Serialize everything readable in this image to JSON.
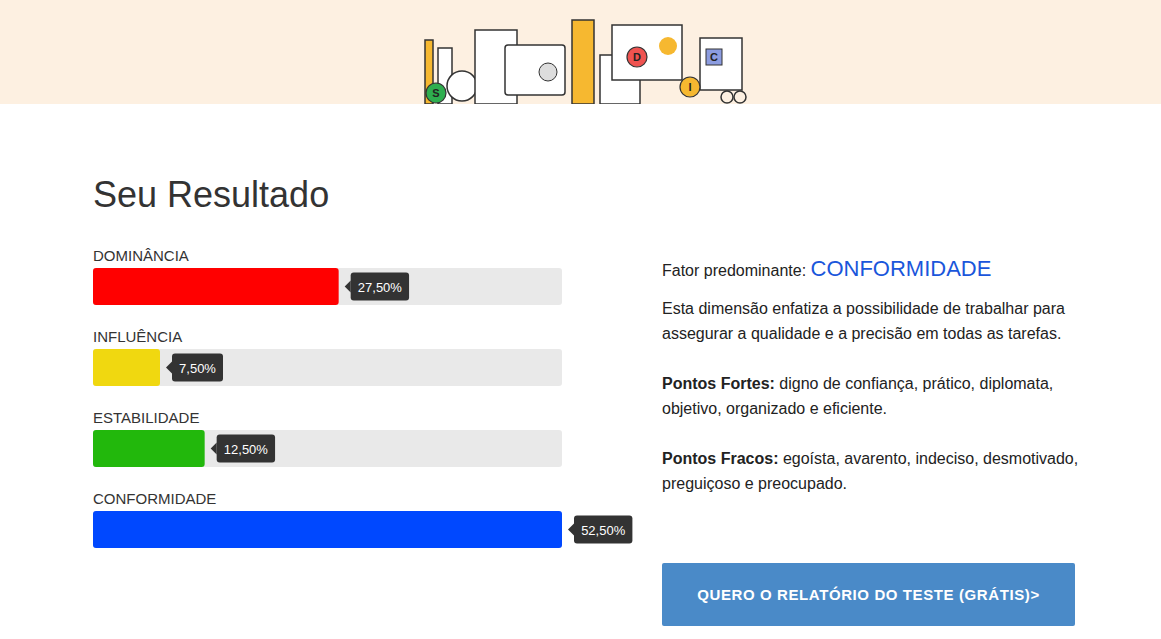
{
  "header": {
    "icon_letters": [
      "S",
      "D",
      "I",
      "C"
    ]
  },
  "title": "Seu Resultado",
  "chart_data": {
    "type": "bar",
    "orientation": "horizontal",
    "categories": [
      "DOMINÂNCIA",
      "INFLUÊNCIA",
      "ESTABILIDADE",
      "CONFORMIDADE"
    ],
    "values": [
      27.5,
      7.5,
      12.5,
      52.5
    ],
    "value_labels": [
      "27,50%",
      "7,50%",
      "12,50%",
      "52,50%"
    ],
    "colors": [
      "#ff0000",
      "#f0d810",
      "#22b80c",
      "#0048ff"
    ],
    "xlim": [
      0,
      52.5
    ],
    "data_labels": true,
    "tick_labels": false,
    "grid": false
  },
  "result": {
    "label": "Fator predominante:",
    "factor": "CONFORMIDADE",
    "description": "Esta dimensão enfatiza a possibilidade de trabalhar para assegurar a qualidade e a precisão em todas as tarefas.",
    "strengths": {
      "label": "Pontos Fortes:",
      "text": "digno de confiança, prático, diplomata, objetivo, organizado e eficiente."
    },
    "weaknesses": {
      "label": "Pontos Fracos:",
      "text": "egoísta, avarento, indeciso, desmotivado, preguiçoso e preocupado."
    }
  },
  "button": "QUERO O RELATÓRIO DO TESTE (GRÁTIS)>"
}
